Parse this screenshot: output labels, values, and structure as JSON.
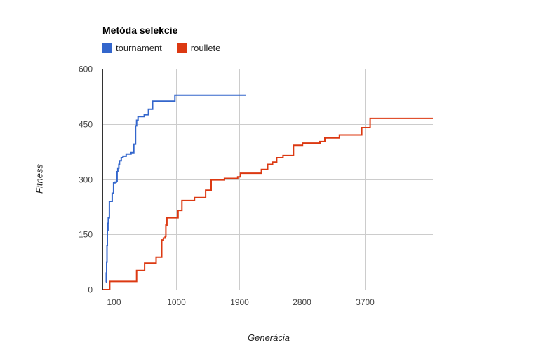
{
  "chart_data": {
    "type": "line",
    "title": "Metóda selekcie",
    "xlabel": "Generácia",
    "ylabel": "Fitness",
    "xlim": [
      -60,
      4680
    ],
    "ylim": [
      0,
      600
    ],
    "x_ticks": [
      100,
      1000,
      1900,
      2800,
      3700
    ],
    "y_ticks": [
      0,
      150,
      300,
      450,
      600
    ],
    "grid": true,
    "legend_position": "top-left",
    "series": [
      {
        "name": "tournament",
        "color": "#3366cc",
        "step": true,
        "points": [
          [
            -10,
            20
          ],
          [
            -5,
            45
          ],
          [
            0,
            75
          ],
          [
            5,
            120
          ],
          [
            10,
            160
          ],
          [
            20,
            180
          ],
          [
            25,
            195
          ],
          [
            40,
            240
          ],
          [
            80,
            262
          ],
          [
            100,
            290
          ],
          [
            120,
            292
          ],
          [
            140,
            295
          ],
          [
            150,
            320
          ],
          [
            160,
            330
          ],
          [
            175,
            340
          ],
          [
            185,
            350
          ],
          [
            210,
            358
          ],
          [
            235,
            362
          ],
          [
            280,
            368
          ],
          [
            350,
            372
          ],
          [
            390,
            395
          ],
          [
            415,
            445
          ],
          [
            430,
            460
          ],
          [
            450,
            470
          ],
          [
            540,
            475
          ],
          [
            600,
            490
          ],
          [
            660,
            512
          ],
          [
            920,
            512
          ],
          [
            980,
            528
          ],
          [
            2000,
            528
          ]
        ]
      },
      {
        "name": "roullete",
        "color": "#dc3912",
        "step": true,
        "points": [
          [
            -60,
            0
          ],
          [
            40,
            0
          ],
          [
            45,
            22
          ],
          [
            420,
            22
          ],
          [
            430,
            52
          ],
          [
            530,
            52
          ],
          [
            545,
            72
          ],
          [
            700,
            72
          ],
          [
            710,
            88
          ],
          [
            780,
            88
          ],
          [
            790,
            135
          ],
          [
            815,
            140
          ],
          [
            840,
            145
          ],
          [
            850,
            175
          ],
          [
            865,
            195
          ],
          [
            1000,
            195
          ],
          [
            1025,
            215
          ],
          [
            1080,
            242
          ],
          [
            1230,
            242
          ],
          [
            1260,
            250
          ],
          [
            1380,
            250
          ],
          [
            1420,
            270
          ],
          [
            1480,
            270
          ],
          [
            1500,
            298
          ],
          [
            1670,
            298
          ],
          [
            1690,
            302
          ],
          [
            1850,
            302
          ],
          [
            1880,
            306
          ],
          [
            1900,
            306
          ],
          [
            1920,
            316
          ],
          [
            2200,
            316
          ],
          [
            2220,
            326
          ],
          [
            2300,
            326
          ],
          [
            2310,
            340
          ],
          [
            2360,
            340
          ],
          [
            2380,
            346
          ],
          [
            2420,
            346
          ],
          [
            2440,
            358
          ],
          [
            2520,
            358
          ],
          [
            2530,
            364
          ],
          [
            2670,
            364
          ],
          [
            2680,
            392
          ],
          [
            2790,
            392
          ],
          [
            2810,
            398
          ],
          [
            3040,
            398
          ],
          [
            3060,
            402
          ],
          [
            3110,
            402
          ],
          [
            3130,
            412
          ],
          [
            3320,
            412
          ],
          [
            3340,
            420
          ],
          [
            3640,
            420
          ],
          [
            3660,
            440
          ],
          [
            3760,
            440
          ],
          [
            3780,
            465
          ],
          [
            4680,
            465
          ]
        ]
      }
    ]
  }
}
